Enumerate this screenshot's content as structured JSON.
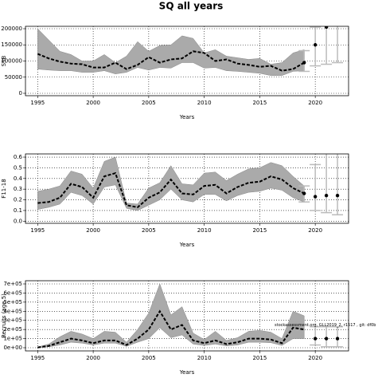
{
  "title": "SQ all years",
  "chart_data": [
    {
      "type": "line",
      "ylabel": "SSB",
      "xlabel": "Years",
      "x": [
        1995,
        1996,
        1997,
        1998,
        1999,
        2000,
        2001,
        2002,
        2003,
        2004,
        2005,
        2006,
        2007,
        2008,
        2009,
        2010,
        2011,
        2012,
        2013,
        2014,
        2015,
        2016,
        2017,
        2018,
        2019
      ],
      "values": [
        122000,
        108000,
        98000,
        92000,
        90000,
        80000,
        80000,
        95000,
        75000,
        88000,
        112000,
        95000,
        105000,
        108000,
        130000,
        125000,
        100000,
        105000,
        92000,
        88000,
        82000,
        85000,
        70000,
        75000,
        95000
      ],
      "upper": [
        200000,
        165000,
        130000,
        120000,
        100000,
        100000,
        120000,
        95000,
        115000,
        160000,
        130000,
        148000,
        150000,
        178000,
        170000,
        125000,
        135000,
        115000,
        110000,
        105000,
        108000,
        90000,
        95000,
        125000,
        135000
      ],
      "lower": [
        75000,
        72000,
        70000,
        70000,
        65000,
        65000,
        70000,
        60000,
        65000,
        80000,
        72000,
        80000,
        78000,
        95000,
        95000,
        78000,
        80000,
        70000,
        68000,
        65000,
        62000,
        55000,
        55000,
        68000,
        70000
      ],
      "forecast": {
        "x": [
          2019,
          2020,
          2021,
          2022
        ],
        "values": [
          95000,
          150000,
          205000,
          null
        ],
        "lower": [
          68000,
          85000,
          90000,
          95000
        ],
        "upper": [
          132000,
          205000,
          230000,
          240000
        ]
      },
      "xlim": [
        1993.9,
        2023
      ],
      "xticks": [
        1995,
        2000,
        2005,
        2010,
        2015,
        2020
      ],
      "ylim": [
        -7400,
        207400
      ],
      "yticks": [
        0,
        50000,
        100000,
        150000,
        200000
      ],
      "grid": true,
      "color": "#aaaaaa"
    },
    {
      "type": "line",
      "ylabel": "F11-18",
      "xlabel": "Years",
      "x": [
        1995,
        1996,
        1997,
        1998,
        1999,
        2000,
        2001,
        2002,
        2003,
        2004,
        2005,
        2006,
        2007,
        2008,
        2009,
        2010,
        2011,
        2012,
        2013,
        2014,
        2015,
        2016,
        2017,
        2018,
        2019
      ],
      "values": [
        0.17,
        0.18,
        0.22,
        0.35,
        0.32,
        0.22,
        0.42,
        0.45,
        0.15,
        0.13,
        0.22,
        0.27,
        0.39,
        0.26,
        0.25,
        0.33,
        0.34,
        0.26,
        0.32,
        0.36,
        0.37,
        0.42,
        0.39,
        0.31,
        0.26
      ],
      "upper": [
        0.28,
        0.3,
        0.33,
        0.47,
        0.44,
        0.31,
        0.56,
        0.6,
        0.17,
        0.16,
        0.31,
        0.36,
        0.52,
        0.35,
        0.34,
        0.45,
        0.46,
        0.38,
        0.44,
        0.49,
        0.5,
        0.55,
        0.52,
        0.42,
        0.33
      ],
      "lower": [
        0.11,
        0.13,
        0.16,
        0.27,
        0.24,
        0.16,
        0.32,
        0.34,
        0.12,
        0.1,
        0.15,
        0.2,
        0.3,
        0.2,
        0.18,
        0.25,
        0.25,
        0.19,
        0.24,
        0.27,
        0.28,
        0.31,
        0.29,
        0.22,
        0.18
      ],
      "forecast": {
        "x": [
          2019,
          2020,
          2021,
          2022
        ],
        "values": [
          0.26,
          0.23,
          0.24,
          0.24
        ],
        "lower": [
          0.18,
          0.1,
          0.08,
          0.06
        ],
        "upper": [
          0.33,
          0.53,
          0.65,
          0.65
        ]
      },
      "xlim": [
        1993.9,
        2023
      ],
      "xticks": [
        1995,
        2000,
        2005,
        2010,
        2015,
        2020
      ],
      "ylim": [
        -0.02,
        0.63
      ],
      "yticks": [
        {
          "value": 0,
          "label": "0.0"
        },
        0.1,
        0.2,
        0.3,
        0.4,
        0.5,
        0.6
      ],
      "grid": true,
      "color": "#aaaaaa"
    },
    {
      "type": "line",
      "ylabel": "Recruits (age 5)",
      "xlabel": "Years",
      "annotation": "stockassessment.org, GLL2019_2, r1517 , git: df0b",
      "x": [
        1995,
        1996,
        1997,
        1998,
        1999,
        2000,
        2001,
        2002,
        2003,
        2004,
        2005,
        2006,
        2007,
        2008,
        2009,
        2010,
        2011,
        2012,
        2013,
        2014,
        2015,
        2016,
        2017,
        2018,
        2019
      ],
      "values": [
        3000,
        20000,
        60000,
        100000,
        80000,
        50000,
        80000,
        80000,
        30000,
        100000,
        200000,
        400000,
        200000,
        250000,
        80000,
        50000,
        80000,
        40000,
        60000,
        100000,
        100000,
        90000,
        50000,
        220000,
        200000
      ],
      "upper": [
        8000,
        40000,
        120000,
        180000,
        150000,
        100000,
        180000,
        170000,
        60000,
        200000,
        380000,
        700000,
        360000,
        450000,
        160000,
        90000,
        180000,
        80000,
        110000,
        180000,
        190000,
        170000,
        100000,
        400000,
        350000
      ],
      "lower": [
        1000,
        10000,
        30000,
        60000,
        50000,
        30000,
        50000,
        50000,
        15000,
        60000,
        100000,
        220000,
        110000,
        140000,
        40000,
        25000,
        40000,
        20000,
        30000,
        60000,
        60000,
        55000,
        25000,
        100000,
        100000
      ],
      "forecast": {
        "x": [
          2020,
          2021,
          2022
        ],
        "values": [
          100000,
          100000,
          100000
        ],
        "lower": [
          30000,
          10000,
          10000
        ],
        "upper": [
          230000,
          230000,
          230000
        ]
      },
      "xlim": [
        1993.9,
        2023
      ],
      "xticks": [
        1995,
        2000,
        2005,
        2010,
        2015,
        2020
      ],
      "ylim": [
        -35000,
        735000
      ],
      "yticks": [
        {
          "value": 0,
          "label": "0e+00"
        },
        {
          "value": 100000,
          "label": "1e+05"
        },
        {
          "value": 200000,
          "label": "2e+05"
        },
        {
          "value": 300000,
          "label": "3e+05"
        },
        {
          "value": 400000,
          "label": "4e+05"
        },
        {
          "value": 500000,
          "label": "5e+05"
        },
        {
          "value": 600000,
          "label": "6e+05"
        },
        {
          "value": 700000,
          "label": "7e+05"
        }
      ],
      "grid": true,
      "color": "#aaaaaa"
    }
  ]
}
